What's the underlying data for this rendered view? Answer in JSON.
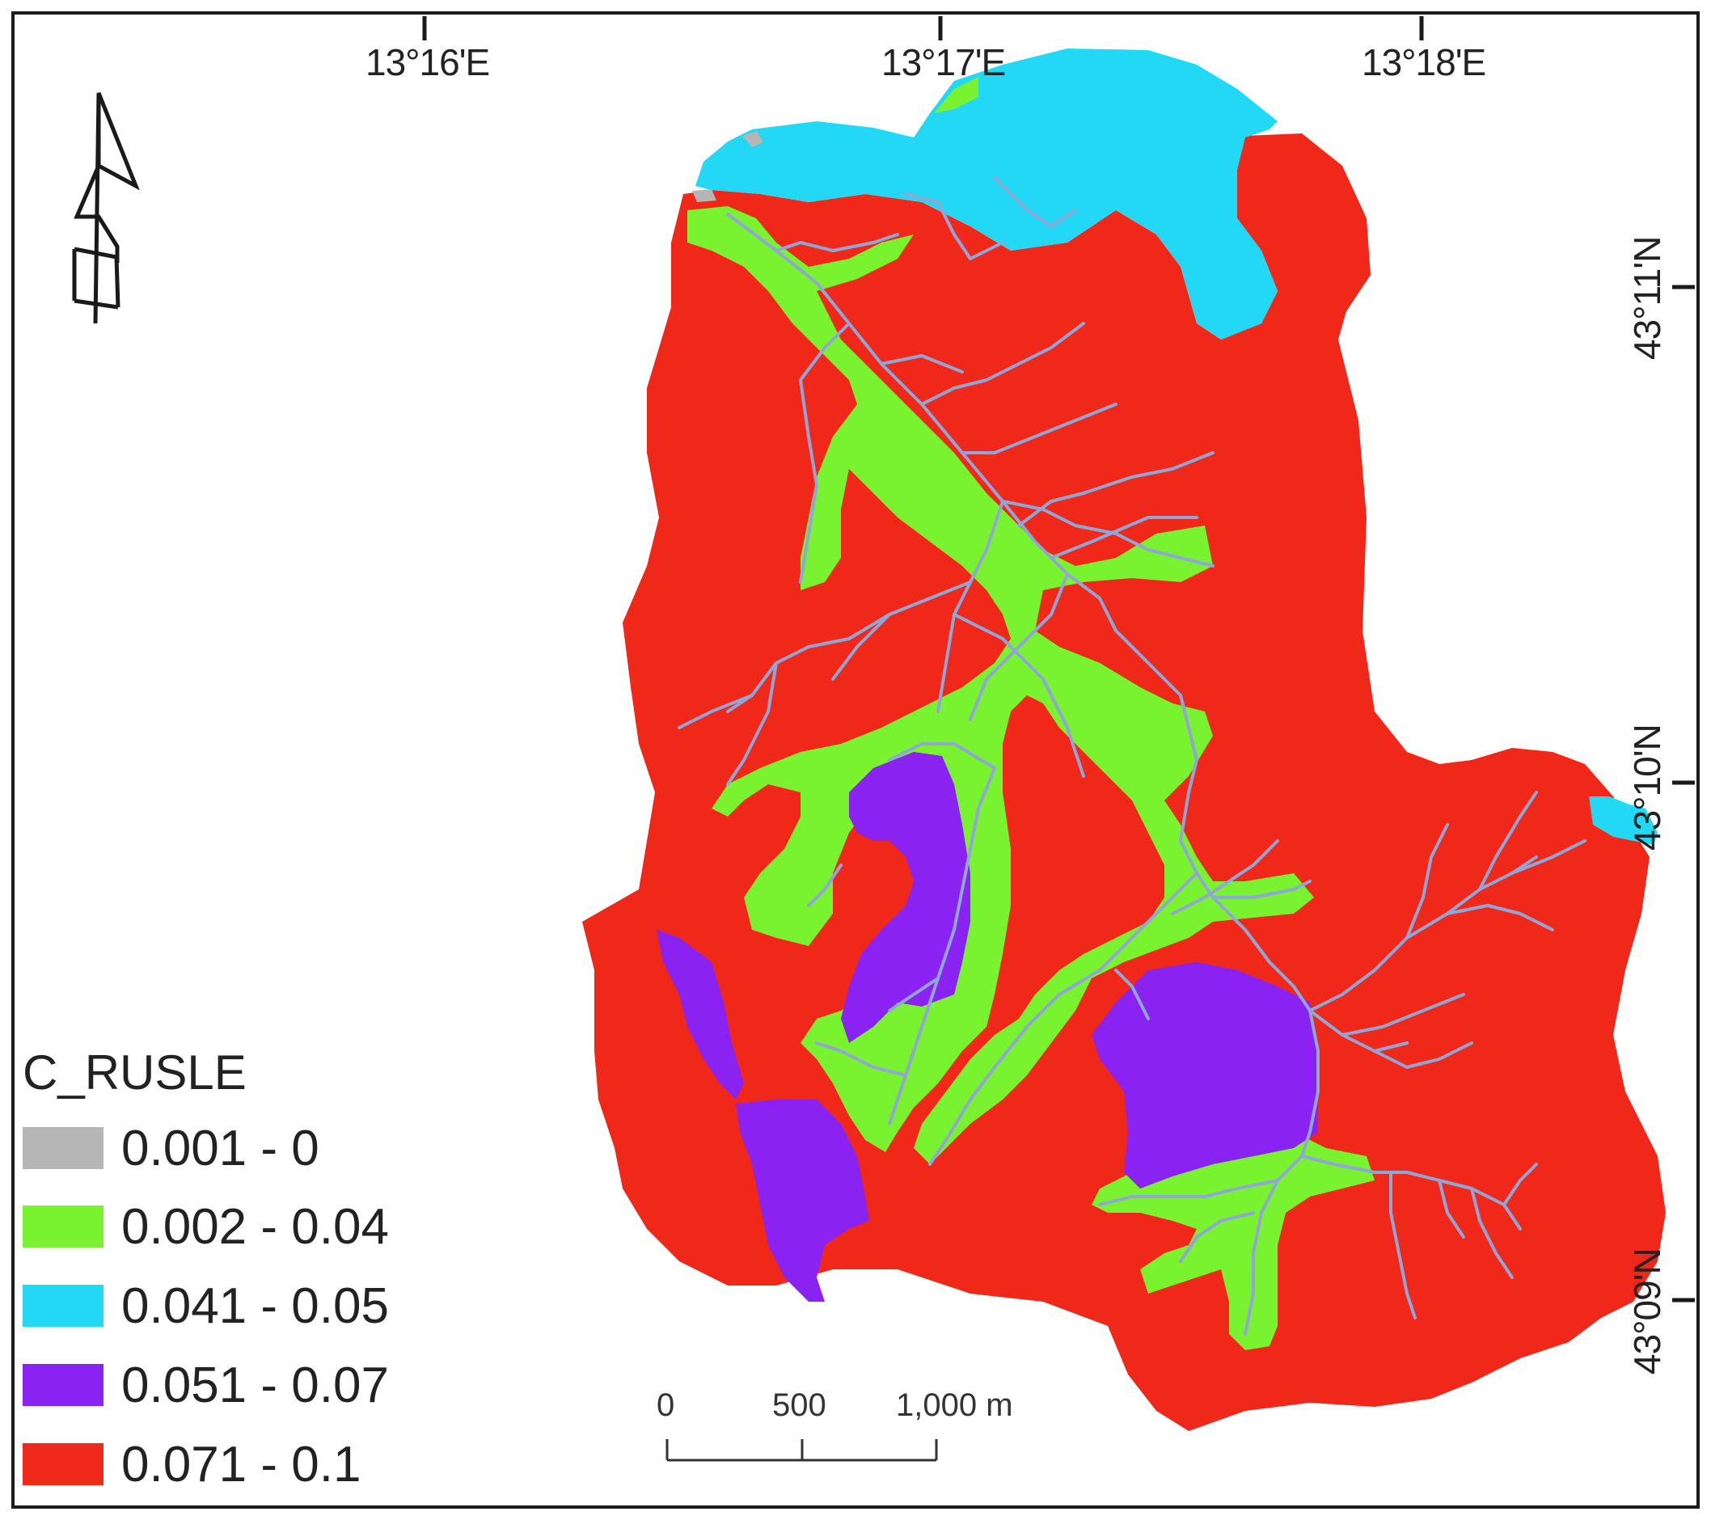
{
  "map": {
    "longitude_ticks": [
      "13°16'E",
      "13°17'E",
      "13°18'E"
    ],
    "latitude_ticks": [
      "43°11'N",
      "43°10'N",
      "43°09'N"
    ],
    "north_arrow": {
      "icon": "north-arrow-icon",
      "label": "N"
    }
  },
  "legend": {
    "title": "C_RUSLE",
    "items": [
      {
        "label": "0.001 - 0",
        "color": "#b5b5b5"
      },
      {
        "label": "0.002 - 0.04",
        "color": "#79f22f"
      },
      {
        "label": "0.041 - 0.05",
        "color": "#22d8f4"
      },
      {
        "label": "0.051 - 0.07",
        "color": "#8a22f2"
      },
      {
        "label": "0.071 - 0.1",
        "color": "#f0281a"
      }
    ]
  },
  "scale_bar": {
    "labels": [
      "0",
      "500",
      "1,000 m"
    ]
  },
  "colors": {
    "stream": "#8fa6d6",
    "frame": "#1a1a1a"
  }
}
